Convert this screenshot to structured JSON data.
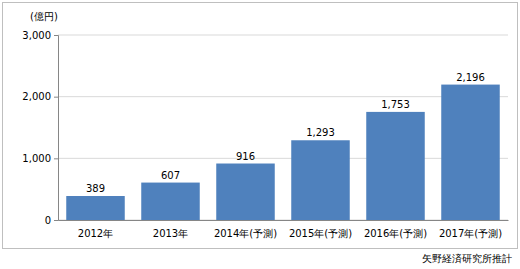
{
  "chart_data": {
    "type": "bar",
    "y_label": "(億円)",
    "categories": [
      "2012年",
      "2013年",
      "2014年(予測)",
      "2015年(予測)",
      "2016年(予測)",
      "2017年(予測)"
    ],
    "values": [
      389,
      607,
      916,
      1293,
      1753,
      2196
    ],
    "value_labels": [
      "389",
      "607",
      "916",
      "1,293",
      "1,753",
      "2,196"
    ],
    "color": "#4f81bd",
    "ylim": [
      0,
      3000
    ],
    "yticks": [
      0,
      {
        "value": 1000,
        "label": "1,000"
      },
      {
        "value": 2000,
        "label": "2,000"
      },
      {
        "value": 3000,
        "label": "3,000"
      }
    ],
    "grid": true,
    "data_labels": true,
    "annotations": [
      "矢野経済研究所推計"
    ]
  }
}
